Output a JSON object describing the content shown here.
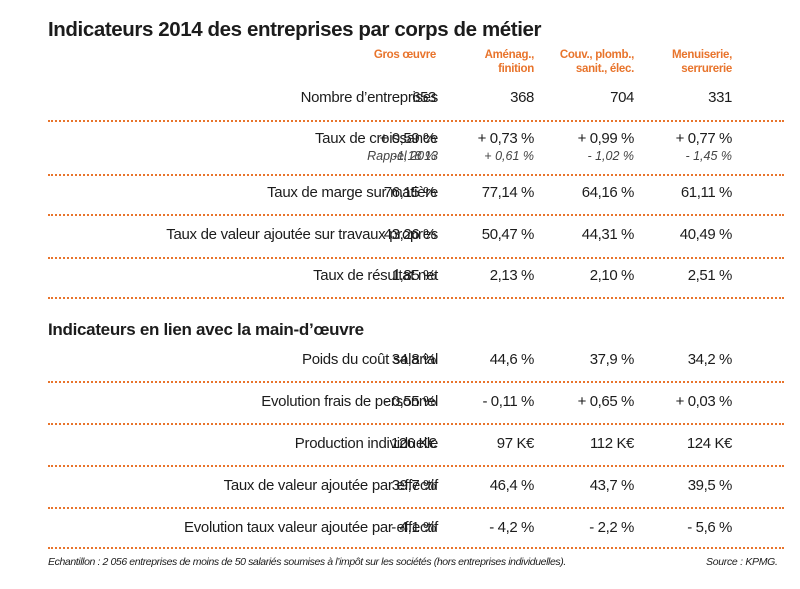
{
  "title": "Indicateurs 2014 des entreprises par corps de métier",
  "columns": [
    {
      "line1": "Gros œuvre",
      "line2": ""
    },
    {
      "line1": "Aménag.,",
      "line2": "finition"
    },
    {
      "line1": "Couv., plomb.,",
      "line2": "sanit., élec."
    },
    {
      "line1": "Menuiserie,",
      "line2": "serrurerie"
    }
  ],
  "rows": [
    {
      "label": "Nombre d’entreprises",
      "values": [
        "653",
        "368",
        "704",
        "331"
      ]
    },
    {
      "label": "Taux de croissance",
      "values": [
        "+ 0,59 %",
        "+ 0,73 %",
        "+ 0,99 %",
        "+ 0,77 %"
      ],
      "sub_label": "Rappel 2013",
      "sub_values": [
        "-1,18 %",
        "+ 0,61 %",
        "- 1,02 %",
        "- 1,45 %"
      ]
    },
    {
      "label": "Taux de marge sur matière",
      "values": [
        "76,15 %",
        "77,14 %",
        "64,16 %",
        "61,11 %"
      ]
    },
    {
      "label": "Taux de valeur ajoutée sur travaux propres",
      "values": [
        "43,26 %",
        "50,47 %",
        "44,31 %",
        "40,49 %"
      ]
    },
    {
      "label": "Taux de résultat net",
      "values": [
        "1,85 %",
        "2,13 %",
        "2,10 %",
        "2,51 %"
      ]
    }
  ],
  "section2": {
    "title": "Indicateurs en lien avec la main-d’œuvre",
    "rows": [
      {
        "label": "Poids du coût salarial",
        "values": [
          "34,8 %",
          "44,6 %",
          "37,9 %",
          "34,2 %"
        ]
      },
      {
        "label": "Evolution frais de personnel",
        "values": [
          "- 0,55 %",
          "- 0,11 %",
          "+ 0,65 %",
          "+ 0,03 %"
        ]
      },
      {
        "label": "Production individuelle",
        "values": [
          "126 K€",
          "97 K€",
          "112 K€",
          "124 K€"
        ]
      },
      {
        "label": "Taux de valeur ajoutée par effectif",
        "values": [
          "39,7 %",
          "46,4 %",
          "43,7 %",
          "39,5 %"
        ]
      },
      {
        "label": "Evolution taux valeur ajoutée par effectif",
        "values": [
          "- 4,1 %",
          "- 4,2 %",
          "- 2,2 %",
          "- 5,6 %"
        ]
      }
    ]
  },
  "footer": {
    "note": "Echantillon : 2 056 entreprises de moins de 50 salariés soumises à l’impôt sur les sociétés (hors entreprises individuelles).",
    "source": "Source : KPMG."
  },
  "colors": {
    "accent": "#e8742c",
    "text": "#1c1c1c"
  }
}
